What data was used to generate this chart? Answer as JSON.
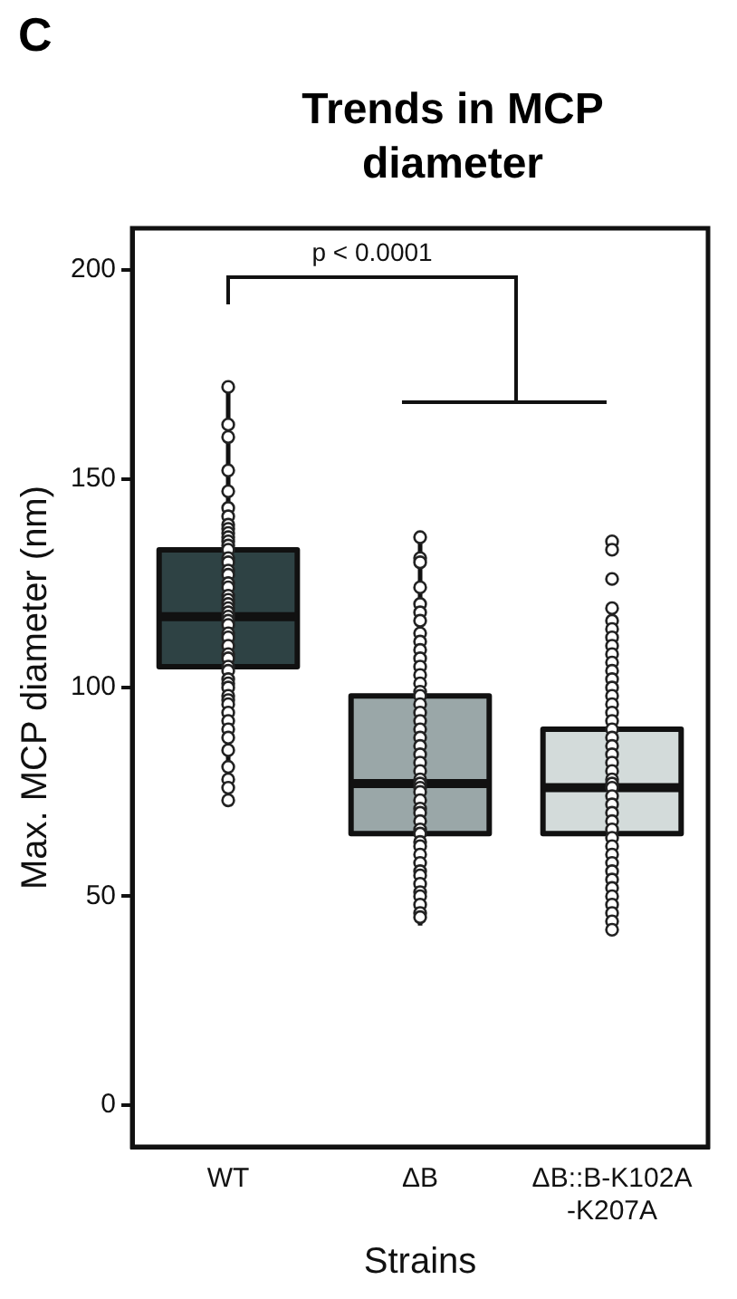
{
  "chart_data": {
    "type": "box",
    "title": "Trends in MCP diameter",
    "xlabel": "Strains",
    "ylabel": "Max. MCP diameter (nm)",
    "categories": [
      "WT",
      "ΔB",
      "ΔB::B-K102A-K207A"
    ],
    "colors": [
      "#2e4244",
      "#9aa7a8",
      "#d3dbda"
    ],
    "boxes": [
      {
        "low": 72,
        "q1": 105,
        "median": 117,
        "q3": 133,
        "high": 172
      },
      {
        "low": 43,
        "q1": 65,
        "median": 77,
        "q3": 98,
        "high": 136
      },
      {
        "low": 42,
        "q1": 65,
        "median": 76,
        "q3": 90,
        "high": 119
      }
    ],
    "series": [
      {
        "type": "scatter",
        "color": "#222222",
        "x": [
          "WT",
          "WT",
          "WT",
          "WT",
          "WT",
          "WT",
          "WT",
          "WT",
          "WT",
          "WT",
          "WT",
          "WT",
          "WT",
          "WT",
          "WT",
          "WT",
          "WT",
          "WT",
          "WT",
          "WT",
          "WT",
          "WT",
          "WT",
          "WT",
          "WT",
          "WT",
          "WT",
          "WT",
          "WT",
          "WT",
          "WT",
          "WT",
          "WT",
          "WT",
          "WT",
          "WT",
          "WT",
          "WT",
          "WT",
          "WT",
          "WT",
          "WT",
          "WT",
          "WT",
          "WT",
          "WT",
          "WT",
          "WT",
          "WT",
          "WT",
          "ΔB",
          "ΔB",
          "ΔB",
          "ΔB",
          "ΔB",
          "ΔB",
          "ΔB",
          "ΔB",
          "ΔB",
          "ΔB",
          "ΔB",
          "ΔB",
          "ΔB",
          "ΔB",
          "ΔB",
          "ΔB",
          "ΔB",
          "ΔB",
          "ΔB",
          "ΔB",
          "ΔB",
          "ΔB",
          "ΔB",
          "ΔB",
          "ΔB",
          "ΔB",
          "ΔB",
          "ΔB",
          "ΔB",
          "ΔB",
          "ΔB",
          "ΔB",
          "ΔB",
          "ΔB",
          "ΔB",
          "ΔB",
          "ΔB",
          "ΔB",
          "ΔB",
          "ΔB",
          "ΔB",
          "ΔB",
          "ΔB",
          "ΔB",
          "ΔB",
          "ΔB",
          "ΔB",
          "ΔB::B-K102A-K207A",
          "ΔB::B-K102A-K207A",
          "ΔB::B-K102A-K207A",
          "ΔB::B-K102A-K207A",
          "ΔB::B-K102A-K207A",
          "ΔB::B-K102A-K207A",
          "ΔB::B-K102A-K207A",
          "ΔB::B-K102A-K207A",
          "ΔB::B-K102A-K207A",
          "ΔB::B-K102A-K207A",
          "ΔB::B-K102A-K207A",
          "ΔB::B-K102A-K207A",
          "ΔB::B-K102A-K207A",
          "ΔB::B-K102A-K207A",
          "ΔB::B-K102A-K207A",
          "ΔB::B-K102A-K207A",
          "ΔB::B-K102A-K207A",
          "ΔB::B-K102A-K207A",
          "ΔB::B-K102A-K207A",
          "ΔB::B-K102A-K207A",
          "ΔB::B-K102A-K207A",
          "ΔB::B-K102A-K207A",
          "ΔB::B-K102A-K207A",
          "ΔB::B-K102A-K207A",
          "ΔB::B-K102A-K207A",
          "ΔB::B-K102A-K207A",
          "ΔB::B-K102A-K207A",
          "ΔB::B-K102A-K207A",
          "ΔB::B-K102A-K207A",
          "ΔB::B-K102A-K207A",
          "ΔB::B-K102A-K207A",
          "ΔB::B-K102A-K207A",
          "ΔB::B-K102A-K207A",
          "ΔB::B-K102A-K207A",
          "ΔB::B-K102A-K207A",
          "ΔB::B-K102A-K207A",
          "ΔB::B-K102A-K207A",
          "ΔB::B-K102A-K207A",
          "ΔB::B-K102A-K207A",
          "ΔB::B-K102A-K207A",
          "ΔB::B-K102A-K207A",
          "ΔB::B-K102A-K207A",
          "ΔB::B-K102A-K207A"
        ],
        "values": [
          172,
          163,
          160,
          152,
          147,
          143,
          141,
          139,
          138,
          137,
          136,
          135,
          134,
          133,
          131,
          130,
          128,
          127,
          125,
          124,
          122,
          121,
          120,
          119,
          118,
          117,
          116,
          115,
          113,
          112,
          110,
          108,
          107,
          105,
          104,
          102,
          101,
          100,
          98,
          97,
          96,
          94,
          92,
          90,
          88,
          85,
          81,
          78,
          76,
          73,
          136,
          131,
          130,
          124,
          120,
          118,
          116,
          113,
          111,
          109,
          107,
          105,
          103,
          101,
          99,
          98,
          96,
          94,
          92,
          90,
          88,
          86,
          84,
          82,
          80,
          78,
          77,
          76,
          75,
          73,
          71,
          70,
          68,
          66,
          65,
          63,
          62,
          60,
          58,
          56,
          55,
          53,
          51,
          50,
          48,
          46,
          45,
          135,
          133,
          126,
          119,
          116,
          114,
          112,
          110,
          108,
          106,
          104,
          102,
          100,
          98,
          96,
          94,
          92,
          90,
          88,
          86,
          84,
          82,
          80,
          78,
          77,
          76,
          74,
          72,
          70,
          68,
          66,
          64,
          62,
          60,
          58,
          56,
          54,
          52,
          50,
          48,
          46,
          44,
          42
        ]
      }
    ],
    "ylim": [
      -10,
      210
    ],
    "yticks": [
      0,
      50,
      100,
      150,
      200
    ],
    "grid": false,
    "legend": false,
    "marker": "circle",
    "annotations": [
      "C",
      "p < 0.0001"
    ]
  }
}
